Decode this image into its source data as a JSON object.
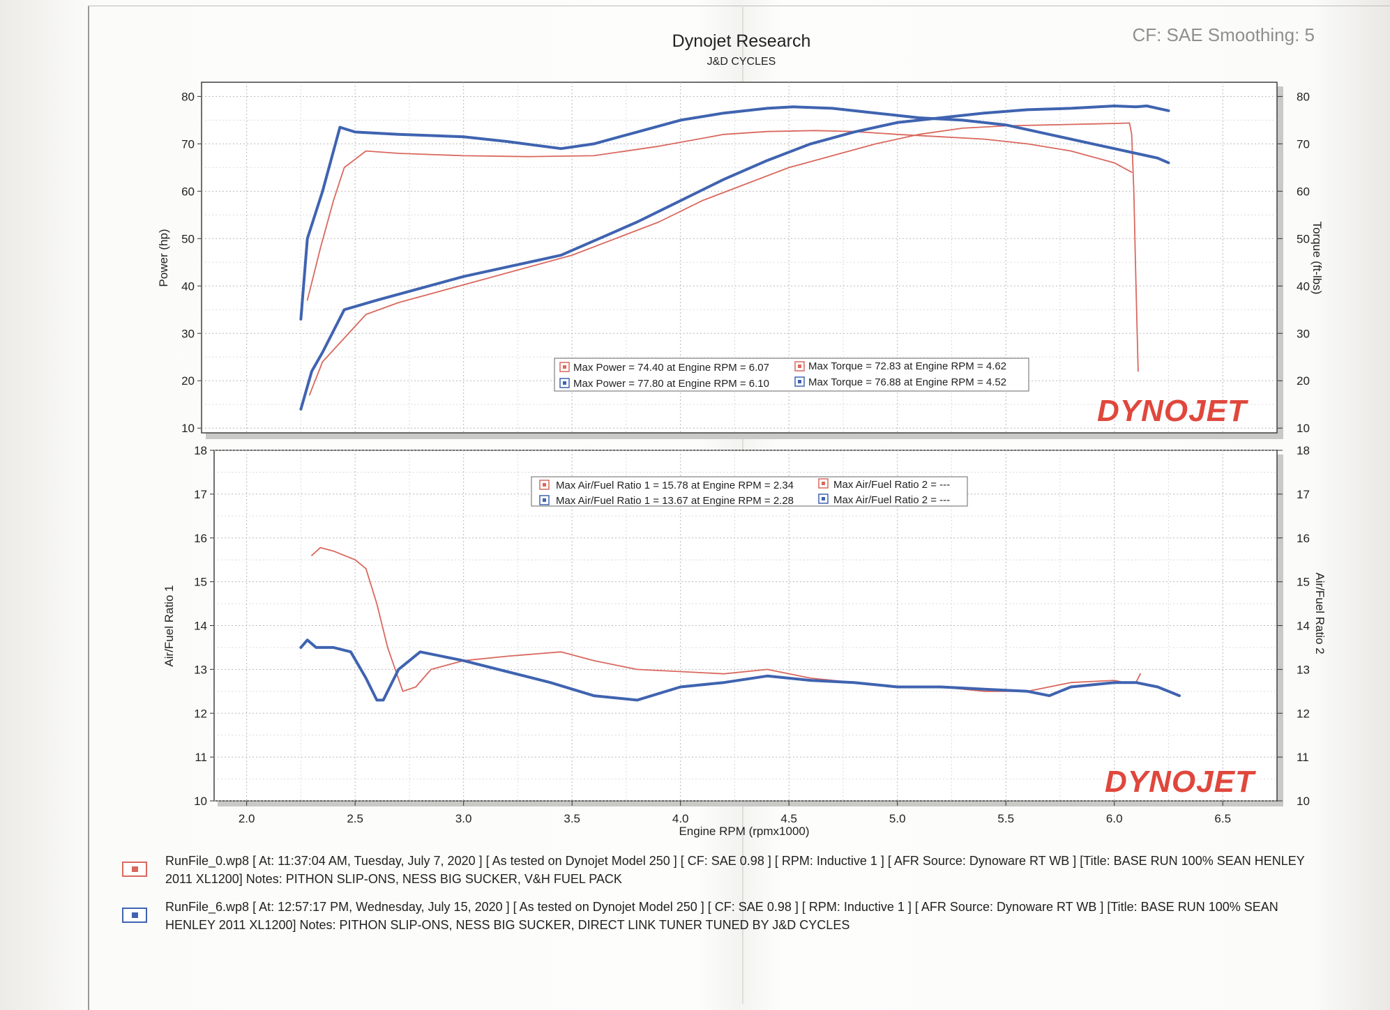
{
  "header": {
    "title": "Dynojet Research",
    "subtitle": "J&D CYCLES",
    "cf_info": "CF: SAE Smoothing: 5"
  },
  "colors": {
    "run0": "#d9685e",
    "run6": "#3f63b0",
    "logo": "#e0473c",
    "logo_dark": "#262626"
  },
  "logo": "DYNOJET",
  "chart_data": [
    {
      "type": "line",
      "title": "",
      "xlabel": "",
      "ylabel": "Power (hp)",
      "y2label": "Torque (ft-lbs)",
      "xlim": [
        1.85,
        6.75
      ],
      "ylim": [
        9,
        83
      ],
      "y2lim": [
        9,
        83
      ],
      "y_ticks": [
        10,
        20,
        30,
        40,
        50,
        60,
        70,
        80
      ],
      "y2_ticks": [
        10,
        20,
        30,
        40,
        50,
        60,
        70,
        80
      ],
      "grid": true,
      "legend": {
        "position": "center-bottom",
        "entries": [
          {
            "series": "run0",
            "text": "Max Power = 74.40 at Engine RPM = 6.07"
          },
          {
            "series": "run0",
            "text": "Max Torque = 72.83 at Engine RPM = 4.62"
          },
          {
            "series": "run6",
            "text": "Max Power = 77.80 at Engine RPM = 6.10"
          },
          {
            "series": "run6",
            "text": "Max Torque = 76.88 at Engine RPM = 4.52"
          }
        ]
      },
      "series": [
        {
          "run": "run0",
          "measure": "torque",
          "x": [
            2.28,
            2.34,
            2.4,
            2.45,
            2.55,
            2.7,
            3.0,
            3.3,
            3.6,
            3.9,
            4.2,
            4.4,
            4.62,
            4.8,
            5.0,
            5.2,
            5.4,
            5.6,
            5.8,
            6.0,
            6.08
          ],
          "y": [
            37,
            48,
            58,
            65,
            68.5,
            68,
            67.5,
            67.3,
            67.5,
            69.5,
            72,
            72.6,
            72.8,
            72.6,
            72,
            71.5,
            71,
            70,
            68.5,
            66,
            64
          ]
        },
        {
          "run": "run0",
          "measure": "power",
          "x": [
            2.29,
            2.35,
            2.45,
            2.55,
            2.7,
            2.9,
            3.1,
            3.3,
            3.5,
            3.7,
            3.9,
            4.1,
            4.3,
            4.5,
            4.7,
            4.9,
            5.1,
            5.3,
            5.5,
            5.7,
            5.9,
            6.0,
            6.07,
            6.08,
            6.09,
            6.1,
            6.11
          ],
          "y": [
            17,
            24,
            29,
            34,
            36.5,
            39,
            41.5,
            44,
            46.5,
            50,
            53.5,
            58,
            61.5,
            65,
            67.5,
            70,
            72,
            73.3,
            73.8,
            74,
            74.2,
            74.3,
            74.4,
            72,
            60,
            40,
            22
          ]
        },
        {
          "run": "run6",
          "measure": "torque",
          "x": [
            2.25,
            2.28,
            2.35,
            2.43,
            2.5,
            2.7,
            3.0,
            3.2,
            3.45,
            3.6,
            3.8,
            4.0,
            4.2,
            4.4,
            4.52,
            4.7,
            4.9,
            5.1,
            5.3,
            5.5,
            5.7,
            5.9,
            6.0,
            6.1,
            6.2,
            6.25
          ],
          "y": [
            33,
            50,
            60,
            73.5,
            72.5,
            72,
            71.5,
            70.5,
            69,
            70,
            72.5,
            75,
            76.5,
            77.5,
            77.8,
            77.5,
            76.5,
            75.5,
            75,
            74,
            72,
            70,
            69,
            68,
            67,
            66
          ]
        },
        {
          "run": "run6",
          "measure": "power",
          "x": [
            2.25,
            2.3,
            2.35,
            2.45,
            2.6,
            2.8,
            3.0,
            3.2,
            3.45,
            3.6,
            3.8,
            4.0,
            4.2,
            4.4,
            4.6,
            4.8,
            5.0,
            5.2,
            5.4,
            5.6,
            5.8,
            6.0,
            6.1,
            6.15,
            6.2,
            6.25
          ],
          "y": [
            14,
            22,
            26,
            35,
            37,
            39.5,
            42,
            44,
            46.5,
            49.5,
            53.5,
            58,
            62.5,
            66.5,
            70,
            72.5,
            74.5,
            75.5,
            76.5,
            77.2,
            77.5,
            78,
            77.8,
            78,
            77.5,
            77
          ]
        }
      ]
    },
    {
      "type": "line",
      "title": "",
      "xlabel": "Engine RPM (rpmx1000)",
      "ylabel": "Air/Fuel Ratio 1",
      "y2label": "Air/Fuel Ratio 2",
      "xlim": [
        1.85,
        6.75
      ],
      "ylim": [
        10,
        18
      ],
      "y2lim": [
        10,
        18
      ],
      "y_ticks": [
        10,
        11,
        12,
        13,
        14,
        15,
        16,
        17,
        18
      ],
      "y2_ticks": [
        10,
        11,
        12,
        13,
        14,
        15,
        16,
        17,
        18
      ],
      "x_ticks": [
        "2.0",
        "2.5",
        "3.0",
        "3.5",
        "4.0",
        "4.5",
        "5.0",
        "5.5",
        "6.0",
        "6.5"
      ],
      "grid": true,
      "legend": {
        "position": "top-center",
        "entries": [
          {
            "series": "run0",
            "text": "Max Air/Fuel Ratio 1 = 15.78 at Engine RPM = 2.34"
          },
          {
            "series": "run0",
            "text": "Max Air/Fuel Ratio 2 = ---"
          },
          {
            "series": "run6",
            "text": "Max Air/Fuel Ratio 1 = 13.67 at Engine RPM = 2.28"
          },
          {
            "series": "run6",
            "text": "Max Air/Fuel Ratio 2 = ---"
          }
        ]
      },
      "series": [
        {
          "run": "run0",
          "measure": "afr1",
          "x": [
            2.3,
            2.34,
            2.4,
            2.5,
            2.55,
            2.6,
            2.65,
            2.72,
            2.78,
            2.85,
            3.0,
            3.2,
            3.45,
            3.6,
            3.8,
            4.0,
            4.2,
            4.4,
            4.6,
            4.8,
            5.0,
            5.2,
            5.4,
            5.6,
            5.8,
            6.0,
            6.05,
            6.1,
            6.12
          ],
          "y": [
            15.6,
            15.78,
            15.7,
            15.5,
            15.3,
            14.5,
            13.5,
            12.5,
            12.6,
            13.0,
            13.2,
            13.3,
            13.4,
            13.2,
            13.0,
            12.95,
            12.9,
            13.0,
            12.8,
            12.7,
            12.6,
            12.6,
            12.5,
            12.5,
            12.7,
            12.75,
            12.7,
            12.7,
            12.9
          ]
        },
        {
          "run": "run6",
          "measure": "afr1",
          "x": [
            2.25,
            2.28,
            2.32,
            2.4,
            2.48,
            2.55,
            2.6,
            2.63,
            2.7,
            2.8,
            3.0,
            3.2,
            3.4,
            3.6,
            3.8,
            4.0,
            4.2,
            4.4,
            4.6,
            4.8,
            5.0,
            5.2,
            5.4,
            5.6,
            5.7,
            5.8,
            6.0,
            6.1,
            6.2,
            6.3
          ],
          "y": [
            13.5,
            13.67,
            13.5,
            13.5,
            13.4,
            12.8,
            12.3,
            12.3,
            13.0,
            13.4,
            13.2,
            12.95,
            12.7,
            12.4,
            12.3,
            12.6,
            12.7,
            12.85,
            12.75,
            12.7,
            12.6,
            12.6,
            12.55,
            12.5,
            12.4,
            12.6,
            12.7,
            12.7,
            12.6,
            12.4
          ]
        }
      ]
    }
  ],
  "runs": [
    {
      "id": "run0",
      "line1": "RunFile_0.wp8 [ At: 11:37:04 AM, Tuesday, July 7, 2020 ] [ As tested on Dynojet Model 250 ] [ CF: SAE 0.98 ] [ RPM: Inductive 1 ] [ AFR Source: Dynoware RT WB ] [Title: BASE RUN 100% SEAN HENLEY",
      "line2": "2011 XL1200]  Notes: PITHON SLIP-ONS, NESS BIG SUCKER, V&H FUEL PACK"
    },
    {
      "id": "run6",
      "line1": "RunFile_6.wp8 [ At: 12:57:17 PM, Wednesday, July 15, 2020 ] [ As tested on Dynojet Model 250 ] [ CF: SAE 0.98 ] [ RPM: Inductive 1 ] [ AFR Source: Dynoware RT WB ] [Title: BASE RUN 100% SEAN",
      "line2": "HENLEY 2011 XL1200]  Notes: PITHON SLIP-ONS, NESS BIG SUCKER, DIRECT LINK TUNER TUNED BY J&D CYCLES"
    }
  ]
}
